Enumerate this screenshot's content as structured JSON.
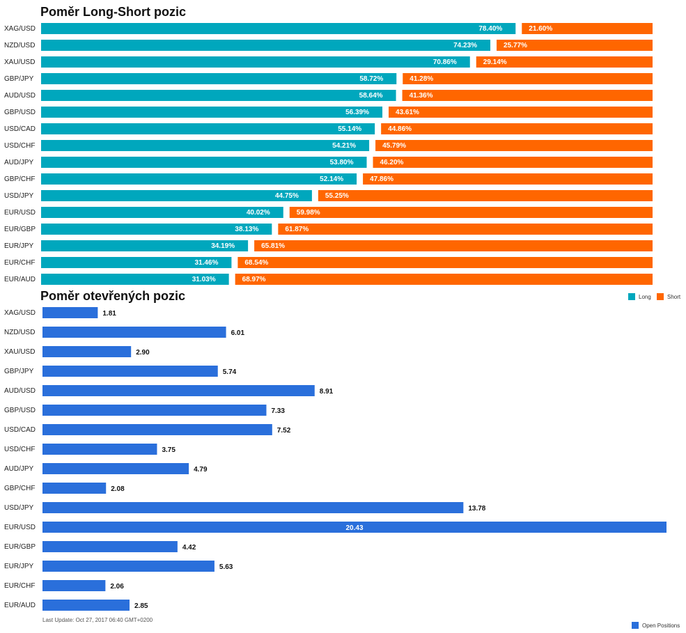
{
  "chart_data": [
    {
      "type": "bar",
      "stacked": true,
      "orientation": "horizontal",
      "title": "Poměr Long-Short pozic",
      "categories": [
        "XAG/USD",
        "NZD/USD",
        "XAU/USD",
        "GBP/JPY",
        "AUD/USD",
        "GBP/USD",
        "USD/CAD",
        "USD/CHF",
        "AUD/JPY",
        "GBP/CHF",
        "USD/JPY",
        "EUR/USD",
        "EUR/GBP",
        "EUR/JPY",
        "EUR/CHF",
        "EUR/AUD"
      ],
      "series": [
        {
          "name": "Long",
          "color": "#00a7bd",
          "values": [
            78.4,
            74.23,
            70.86,
            58.72,
            58.64,
            56.39,
            55.14,
            54.21,
            53.8,
            52.14,
            44.75,
            40.02,
            38.13,
            34.19,
            31.46,
            31.03
          ],
          "labels": [
            "78.40%",
            "74.23%",
            "70.86%",
            "58.72%",
            "58.64%",
            "56.39%",
            "55.14%",
            "54.21%",
            "53.80%",
            "52.14%",
            "44.75%",
            "40.02%",
            "38.13%",
            "34.19%",
            "31.46%",
            "31.03%"
          ]
        },
        {
          "name": "Short",
          "color": "#ff6600",
          "values": [
            21.6,
            25.77,
            29.14,
            41.28,
            41.36,
            43.61,
            44.86,
            45.79,
            46.2,
            47.86,
            55.25,
            59.98,
            61.87,
            65.81,
            68.54,
            68.97
          ],
          "labels": [
            "21.60%",
            "25.77%",
            "29.14%",
            "41.28%",
            "41.36%",
            "43.61%",
            "44.86%",
            "45.79%",
            "46.20%",
            "47.86%",
            "55.25%",
            "59.98%",
            "61.87%",
            "65.81%",
            "68.54%",
            "68.97%"
          ]
        }
      ],
      "xlim": [
        0,
        100
      ],
      "legend": "bottom-right"
    },
    {
      "type": "bar",
      "orientation": "horizontal",
      "title": "Poměr otevřených pozic",
      "categories": [
        "XAG/USD",
        "NZD/USD",
        "XAU/USD",
        "GBP/JPY",
        "AUD/USD",
        "GBP/USD",
        "USD/CAD",
        "USD/CHF",
        "AUD/JPY",
        "GBP/CHF",
        "USD/JPY",
        "EUR/USD",
        "EUR/GBP",
        "EUR/JPY",
        "EUR/CHF",
        "EUR/AUD"
      ],
      "series": [
        {
          "name": "Open Positions",
          "color": "#2a6fdb",
          "values": [
            1.81,
            6.01,
            2.9,
            5.74,
            8.91,
            7.33,
            7.52,
            3.75,
            4.79,
            2.08,
            13.78,
            20.43,
            4.42,
            5.63,
            2.06,
            2.85
          ],
          "labels": [
            "1.81",
            "6.01",
            "2.90",
            "5.74",
            "8.91",
            "7.33",
            "7.52",
            "3.75",
            "4.79",
            "2.08",
            "13.78",
            "20.43",
            "4.42",
            "5.63",
            "2.06",
            "2.85"
          ]
        }
      ],
      "xlim": [
        0,
        20.43
      ],
      "legend": "bottom-right",
      "footnote": "Last Update: Oct 27, 2017 06:40 GMT+0200"
    }
  ]
}
